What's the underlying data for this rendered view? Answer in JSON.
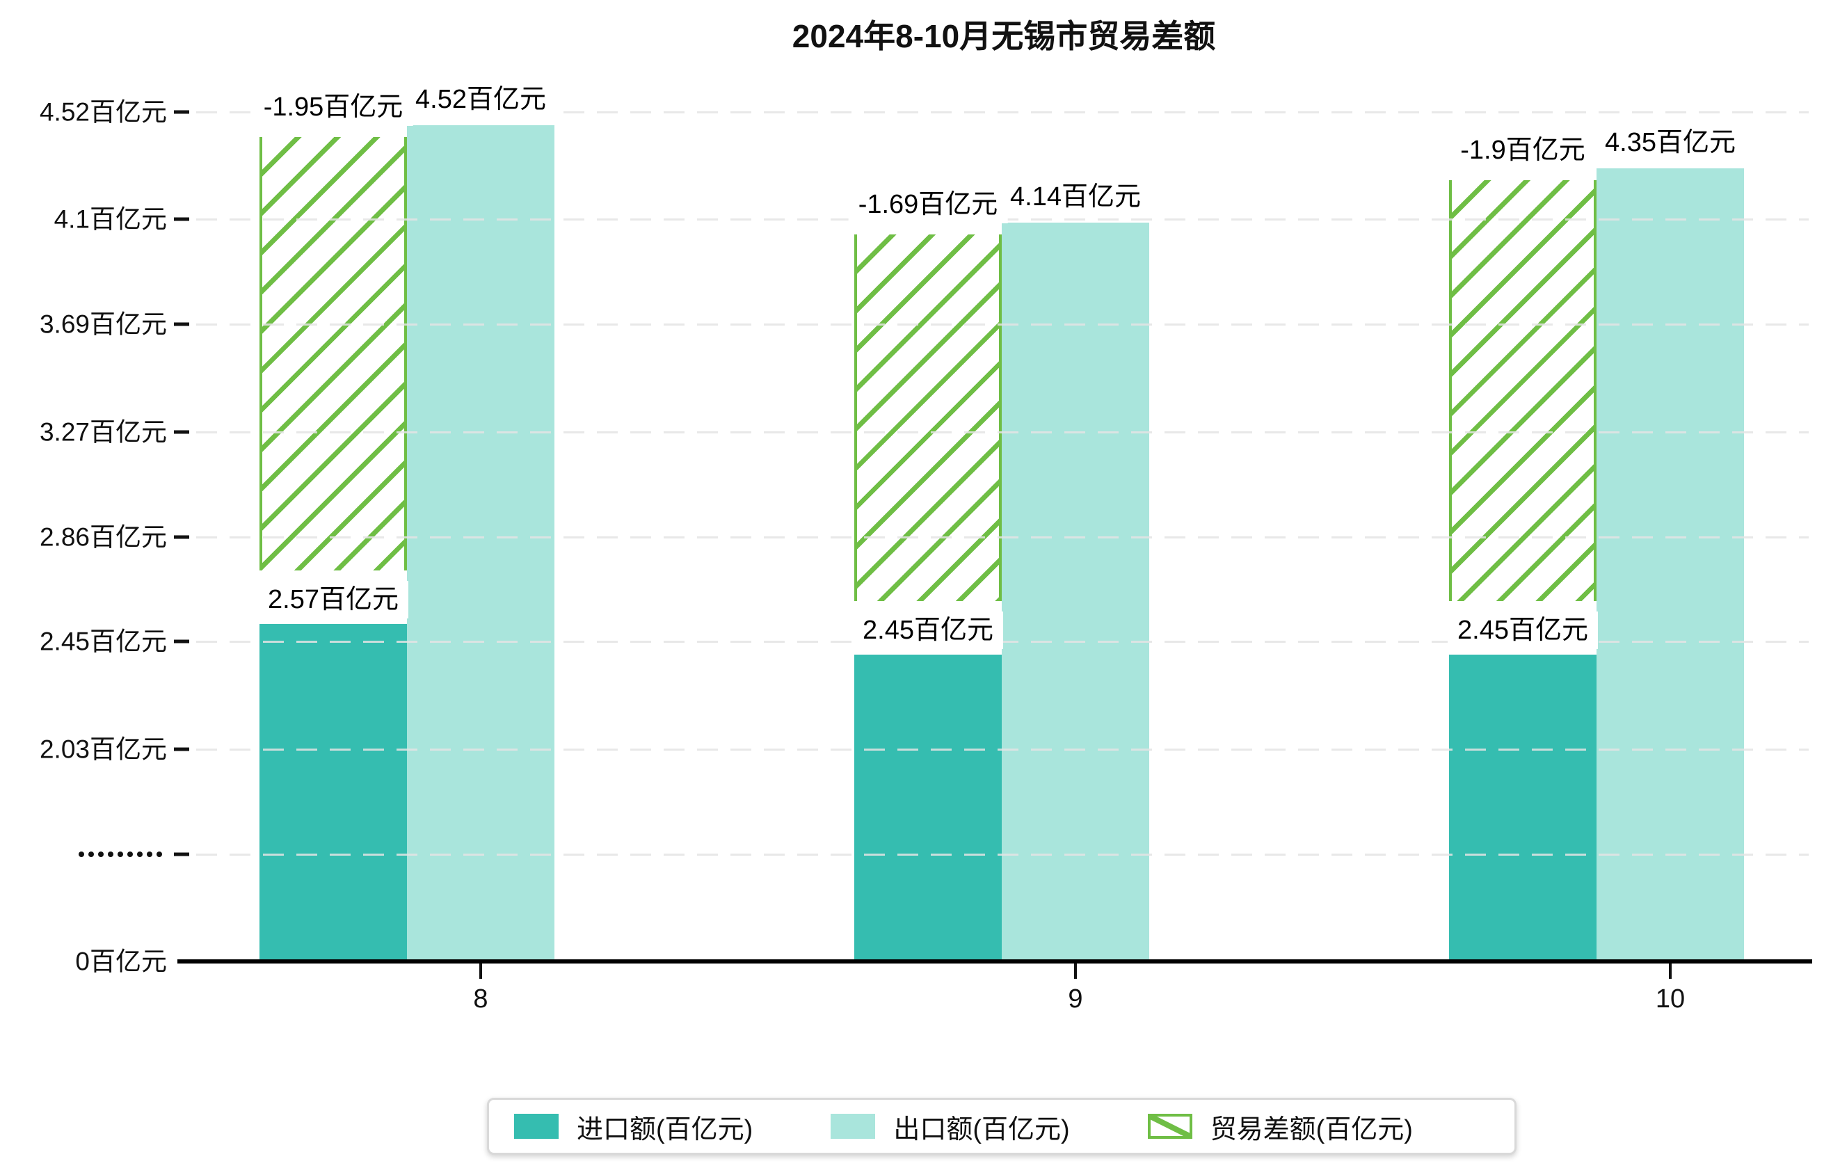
{
  "title": "2024年8-10月无锡市贸易差额",
  "chart_data": {
    "type": "bar",
    "title": "2024年8-10月无锡市贸易差额",
    "categories": [
      "8",
      "9",
      "10"
    ],
    "series": [
      {
        "name": "进口额(百亿元)",
        "style": "solid",
        "color": "#35bdb0",
        "values": [
          2.57,
          2.45,
          2.45
        ],
        "labels": [
          "2.57百亿元",
          "2.45百亿元",
          "2.45百亿元"
        ]
      },
      {
        "name": "出口额(百亿元)",
        "style": "solid",
        "color": "#a9e5dc",
        "values": [
          4.52,
          4.14,
          4.35
        ],
        "labels": [
          "4.52百亿元",
          "4.14百亿元",
          "4.35百亿元"
        ]
      },
      {
        "name": "贸易差额(百亿元)",
        "style": "hatched",
        "color": "#6fbe45",
        "values": [
          -1.95,
          -1.69,
          -1.9
        ],
        "labels": [
          "-1.95百亿元",
          "-1.69百亿元",
          "-1.9百亿元"
        ]
      }
    ],
    "y_axis": {
      "unit": "百亿元",
      "axis_break_between": [
        0,
        2.03
      ],
      "ticks": [
        {
          "label": "4.52百亿元",
          "v": 4.52
        },
        {
          "label": "4.1百亿元",
          "v": 4.1
        },
        {
          "label": "3.69百亿元",
          "v": 3.69
        },
        {
          "label": "3.27百亿元",
          "v": 3.27
        },
        {
          "label": "2.86百亿元",
          "v": 2.86
        },
        {
          "label": "2.45百亿元",
          "v": 2.45
        },
        {
          "label": "2.03百亿元",
          "v": 2.03
        },
        {
          "label": "·········",
          "v": null
        },
        {
          "label": "0百亿元",
          "v": 0
        }
      ]
    },
    "x_axis": {
      "ticks": [
        "8",
        "9",
        "10"
      ]
    },
    "legend": {
      "position": "bottom",
      "items": [
        "进口额(百亿元)",
        "出口额(百亿元)",
        "贸易差额(百亿元)"
      ]
    },
    "grid": true
  }
}
